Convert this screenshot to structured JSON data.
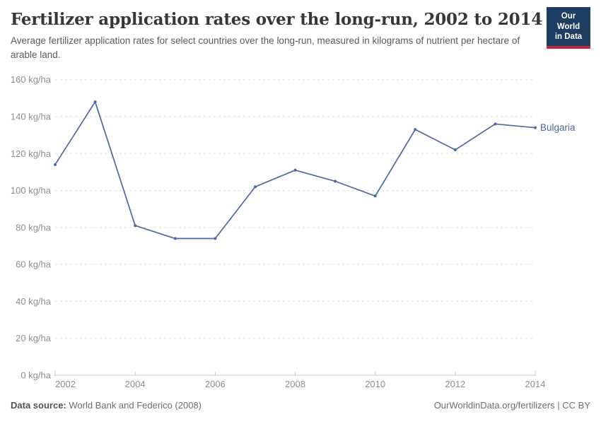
{
  "header": {
    "title": "Fertilizer application rates over the long-run, 2002 to 2014",
    "subtitle": "Average fertilizer application rates for select countries over the long-run, measured in kilograms of nutrient per hectare of arable land.",
    "logo": {
      "line1": "Our World",
      "line2": "in Data"
    }
  },
  "chart_data": {
    "type": "line",
    "title": "Fertilizer application rates over the long-run, 2002 to 2014",
    "xlabel": "",
    "ylabel": "kg of nutrient per hectare of arable land",
    "x": [
      2002,
      2003,
      2004,
      2005,
      2006,
      2007,
      2008,
      2009,
      2010,
      2011,
      2012,
      2013,
      2014
    ],
    "series": [
      {
        "name": "Bulgaria",
        "color": "#4a69a2",
        "values": [
          114,
          148,
          81,
          74,
          74,
          102,
          111,
          105,
          97,
          133,
          122,
          136,
          134
        ]
      }
    ],
    "ylim": [
      0,
      160
    ],
    "ytick_interval": 20,
    "ytick_suffix": " kg/ha",
    "yticks": [
      0,
      20,
      40,
      60,
      80,
      100,
      120,
      140,
      160
    ],
    "xticks": [
      2002,
      2004,
      2006,
      2008,
      2010,
      2012,
      2014
    ],
    "grid": "horizontal-dashed",
    "legend": "line-end-label"
  },
  "footer": {
    "datasource_label": "Data source:",
    "datasource_value": " World Bank and Federico (2008)",
    "credit": "OurWorldinData.org/fertilizers | CC BY"
  },
  "colors": {
    "line": "#4a69a2",
    "logo_navy": "#1d3d63",
    "logo_red": "#c0283c",
    "grid": "#dcdcdc",
    "axis": "#c9c9c9",
    "tick_text": "#8f8f8f",
    "title_text": "#373737",
    "subtitle_text": "#5a5a5a"
  }
}
